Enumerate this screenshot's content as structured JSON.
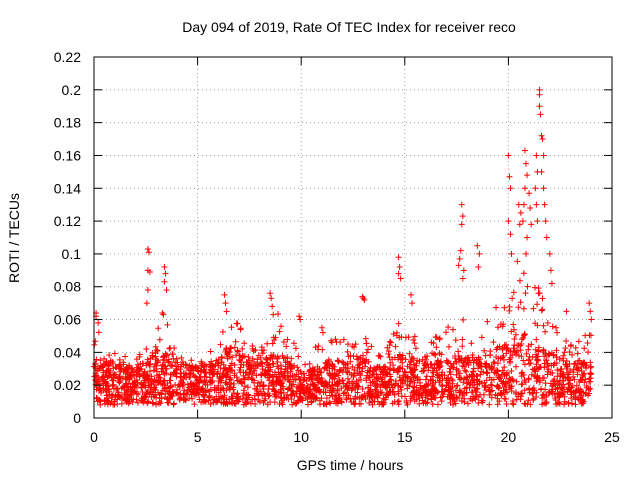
{
  "chart_data": {
    "type": "scatter",
    "title": "Day 094 of 2019, Rate Of TEC Index for receiver reco",
    "xlabel": "GPS time / hours",
    "ylabel": "ROTI / TECUs",
    "xlim": [
      0,
      25
    ],
    "ylim": [
      0,
      0.22
    ],
    "x_ticks": [
      0,
      5,
      10,
      15,
      20,
      25
    ],
    "x_tick_labels": [
      "0",
      "5",
      "10",
      "15",
      "20",
      "25"
    ],
    "y_ticks": [
      0,
      0.02,
      0.04,
      0.06,
      0.08,
      0.1,
      0.12,
      0.14,
      0.16,
      0.18,
      0.2,
      0.22
    ],
    "y_tick_labels": [
      "0",
      "0.02",
      "0.04",
      "0.06",
      "0.08",
      "0.1",
      "0.12",
      "0.14",
      "0.16",
      "0.18",
      "0.2",
      "0.22"
    ],
    "grid": true,
    "marker": "+",
    "series_color": "#ff0000",
    "series": [
      {
        "name": "ROTI",
        "baseline_profile": {
          "x": [
            0,
            0.5,
            1,
            2,
            2.7,
            3.5,
            4,
            5,
            6,
            6.5,
            8,
            8.7,
            9.5,
            10,
            11,
            12,
            12.5,
            13,
            14,
            14.8,
            15.5,
            16,
            17,
            17.8,
            18.5,
            19,
            20,
            20.5,
            21,
            21.5,
            22,
            22.5,
            23,
            24
          ],
          "typical": [
            0.025,
            0.022,
            0.02,
            0.018,
            0.022,
            0.025,
            0.02,
            0.018,
            0.022,
            0.028,
            0.02,
            0.025,
            0.022,
            0.015,
            0.02,
            0.022,
            0.028,
            0.022,
            0.018,
            0.025,
            0.022,
            0.02,
            0.022,
            0.025,
            0.022,
            0.025,
            0.03,
            0.035,
            0.032,
            0.03,
            0.025,
            0.022,
            0.02,
            0.02
          ],
          "upper": [
            0.06,
            0.045,
            0.04,
            0.035,
            0.055,
            0.06,
            0.04,
            0.035,
            0.045,
            0.065,
            0.04,
            0.07,
            0.05,
            0.04,
            0.05,
            0.05,
            0.055,
            0.05,
            0.04,
            0.06,
            0.05,
            0.045,
            0.055,
            0.06,
            0.055,
            0.06,
            0.08,
            0.1,
            0.09,
            0.08,
            0.06,
            0.05,
            0.045,
            0.06
          ]
        },
        "clusters": [
          {
            "x": 0.1,
            "y": 0.064
          },
          {
            "x": 0.1,
            "y": 0.062
          },
          {
            "x": 0.2,
            "y": 0.058
          },
          {
            "x": 2.6,
            "y": 0.103
          },
          {
            "x": 2.65,
            "y": 0.101
          },
          {
            "x": 2.6,
            "y": 0.09
          },
          {
            "x": 2.7,
            "y": 0.089
          },
          {
            "x": 2.6,
            "y": 0.078
          },
          {
            "x": 2.55,
            "y": 0.07
          },
          {
            "x": 3.4,
            "y": 0.092
          },
          {
            "x": 3.45,
            "y": 0.088
          },
          {
            "x": 3.4,
            "y": 0.083
          },
          {
            "x": 3.5,
            "y": 0.078
          },
          {
            "x": 3.3,
            "y": 0.064
          },
          {
            "x": 3.35,
            "y": 0.063
          },
          {
            "x": 6.3,
            "y": 0.075
          },
          {
            "x": 6.35,
            "y": 0.07
          },
          {
            "x": 6.4,
            "y": 0.065
          },
          {
            "x": 8.5,
            "y": 0.076
          },
          {
            "x": 8.55,
            "y": 0.073
          },
          {
            "x": 8.6,
            "y": 0.068
          },
          {
            "x": 8.65,
            "y": 0.063
          },
          {
            "x": 9.9,
            "y": 0.062
          },
          {
            "x": 9.95,
            "y": 0.06
          },
          {
            "x": 11.0,
            "y": 0.055
          },
          {
            "x": 11.05,
            "y": 0.052
          },
          {
            "x": 12.95,
            "y": 0.074
          },
          {
            "x": 13.0,
            "y": 0.073
          },
          {
            "x": 13.05,
            "y": 0.072
          },
          {
            "x": 14.7,
            "y": 0.098
          },
          {
            "x": 14.75,
            "y": 0.092
          },
          {
            "x": 14.7,
            "y": 0.088
          },
          {
            "x": 14.8,
            "y": 0.085
          },
          {
            "x": 15.3,
            "y": 0.075
          },
          {
            "x": 15.35,
            "y": 0.07
          },
          {
            "x": 17.75,
            "y": 0.13
          },
          {
            "x": 17.8,
            "y": 0.123
          },
          {
            "x": 17.75,
            "y": 0.118
          },
          {
            "x": 17.7,
            "y": 0.102
          },
          {
            "x": 17.65,
            "y": 0.097
          },
          {
            "x": 17.6,
            "y": 0.093
          },
          {
            "x": 17.85,
            "y": 0.09
          },
          {
            "x": 17.8,
            "y": 0.085
          },
          {
            "x": 18.5,
            "y": 0.105
          },
          {
            "x": 18.6,
            "y": 0.1
          },
          {
            "x": 18.55,
            "y": 0.092
          },
          {
            "x": 20.0,
            "y": 0.16
          },
          {
            "x": 20.05,
            "y": 0.147
          },
          {
            "x": 20.1,
            "y": 0.14
          },
          {
            "x": 20.0,
            "y": 0.12
          },
          {
            "x": 20.1,
            "y": 0.112
          },
          {
            "x": 20.15,
            "y": 0.1
          },
          {
            "x": 20.5,
            "y": 0.13
          },
          {
            "x": 20.6,
            "y": 0.125
          },
          {
            "x": 20.55,
            "y": 0.118
          },
          {
            "x": 20.8,
            "y": 0.163
          },
          {
            "x": 20.85,
            "y": 0.155
          },
          {
            "x": 20.9,
            "y": 0.148
          },
          {
            "x": 20.8,
            "y": 0.14
          },
          {
            "x": 20.75,
            "y": 0.13
          },
          {
            "x": 20.7,
            "y": 0.12
          },
          {
            "x": 20.9,
            "y": 0.11
          },
          {
            "x": 20.85,
            "y": 0.1
          },
          {
            "x": 21.0,
            "y": 0.137
          },
          {
            "x": 21.05,
            "y": 0.128
          },
          {
            "x": 21.1,
            "y": 0.118
          },
          {
            "x": 21.35,
            "y": 0.16
          },
          {
            "x": 21.4,
            "y": 0.15
          },
          {
            "x": 21.3,
            "y": 0.14
          },
          {
            "x": 21.35,
            "y": 0.13
          },
          {
            "x": 21.4,
            "y": 0.12
          },
          {
            "x": 21.5,
            "y": 0.2
          },
          {
            "x": 21.5,
            "y": 0.197
          },
          {
            "x": 21.5,
            "y": 0.19
          },
          {
            "x": 21.55,
            "y": 0.185
          },
          {
            "x": 21.6,
            "y": 0.172
          },
          {
            "x": 21.65,
            "y": 0.17
          },
          {
            "x": 21.7,
            "y": 0.16
          },
          {
            "x": 21.6,
            "y": 0.15
          },
          {
            "x": 21.7,
            "y": 0.14
          },
          {
            "x": 21.75,
            "y": 0.13
          },
          {
            "x": 21.8,
            "y": 0.12
          },
          {
            "x": 21.85,
            "y": 0.11
          },
          {
            "x": 22.0,
            "y": 0.1
          },
          {
            "x": 22.05,
            "y": 0.09
          },
          {
            "x": 22.1,
            "y": 0.082
          },
          {
            "x": 22.3,
            "y": 0.055
          },
          {
            "x": 22.35,
            "y": 0.052
          },
          {
            "x": 22.8,
            "y": 0.065
          },
          {
            "x": 23.9,
            "y": 0.07
          },
          {
            "x": 23.95,
            "y": 0.065
          },
          {
            "x": 24.0,
            "y": 0.06
          }
        ]
      }
    ]
  }
}
